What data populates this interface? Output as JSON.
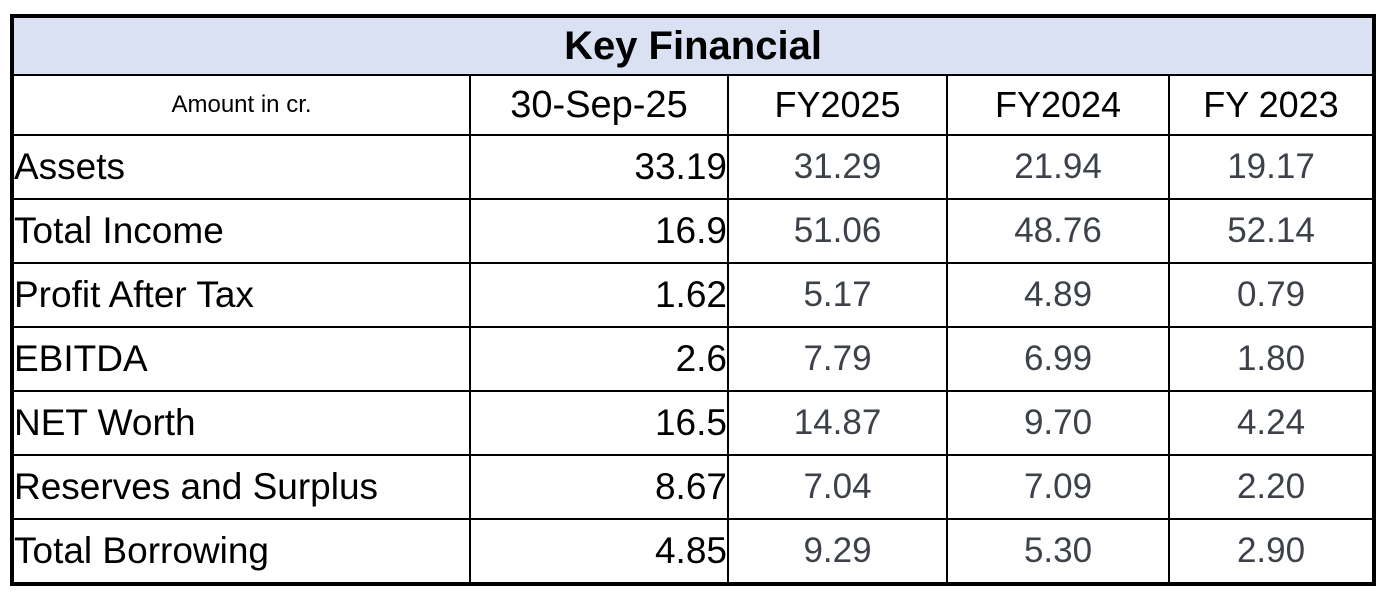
{
  "colors": {
    "title_background": "#d9e1f2",
    "border": "#000000",
    "primary_text": "#000000",
    "fy_value_text": "#3d424a"
  },
  "chart_data": {
    "type": "table",
    "title": "Key Financial",
    "unit_label": "Amount in cr.",
    "columns": [
      "30-Sep-25",
      "FY2025",
      "FY2024",
      "FY 2023"
    ],
    "rows": [
      {
        "label": "Assets",
        "values": [
          "33.19",
          "31.29",
          "21.94",
          "19.17"
        ]
      },
      {
        "label": "Total Income",
        "values": [
          "16.9",
          "51.06",
          "48.76",
          "52.14"
        ]
      },
      {
        "label": "Profit After Tax",
        "values": [
          "1.62",
          "5.17",
          "4.89",
          "0.79"
        ]
      },
      {
        "label": "EBITDA",
        "values": [
          "2.6",
          "7.79",
          "6.99",
          "1.80"
        ]
      },
      {
        "label": "NET Worth",
        "values": [
          "16.5",
          "14.87",
          "9.70",
          "4.24"
        ]
      },
      {
        "label": "Reserves and Surplus",
        "values": [
          "8.67",
          "7.04",
          "7.09",
          "2.20"
        ]
      },
      {
        "label": "Total Borrowing",
        "values": [
          "4.85",
          "9.29",
          "5.30",
          "2.90"
        ]
      }
    ]
  }
}
